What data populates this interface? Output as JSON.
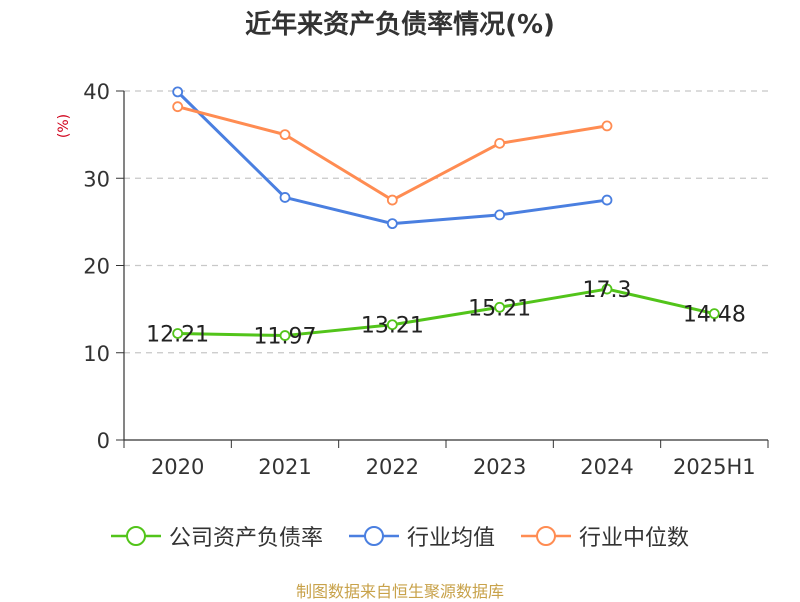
{
  "chart_data": {
    "type": "line",
    "title": "近年来资产负债率情况(%)",
    "ylabel": "(%)",
    "categories": [
      "2020",
      "2021",
      "2022",
      "2023",
      "2024",
      "2025H1"
    ],
    "ylim": [
      0,
      40
    ],
    "yticks": [
      0,
      10,
      20,
      30,
      40
    ],
    "grid": true,
    "legend_position": "bottom",
    "series": [
      {
        "name": "公司资产负债率",
        "color": "#52c41a",
        "values": [
          12.21,
          11.97,
          13.21,
          15.21,
          17.3,
          14.48
        ],
        "labels": [
          "12.21",
          "11.97",
          "13.21",
          "15.21",
          "17.3",
          "14.48"
        ]
      },
      {
        "name": "行业均值",
        "color": "#4a7fe0",
        "values": [
          39.9,
          27.8,
          24.8,
          25.8,
          27.5,
          null
        ]
      },
      {
        "name": "行业中位数",
        "color": "#ff8c52",
        "values": [
          38.2,
          35.0,
          27.5,
          34.0,
          36.0,
          null
        ]
      }
    ]
  },
  "source_note": "制图数据来自恒生聚源数据库"
}
